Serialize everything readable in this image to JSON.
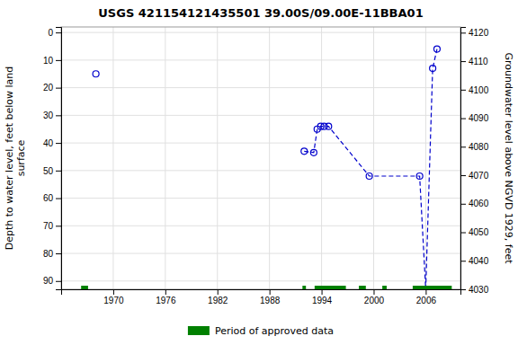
{
  "chart_data": {
    "type": "line",
    "title": "USGS 421154121435501 39.00S/09.00E-11BBA01",
    "y_label": "Depth to water level, feet below land\nsurface",
    "y2_label": "Groundwater level above NGVD 1929, feet",
    "xlim": [
      1964,
      2010
    ],
    "xticks": [
      1970,
      1976,
      1982,
      1988,
      1994,
      2000,
      2006
    ],
    "ylim": [
      93,
      -2
    ],
    "yticks": [
      0,
      10,
      20,
      30,
      40,
      50,
      60,
      70,
      80,
      90
    ],
    "y2lim": [
      4030,
      4122
    ],
    "y2ticks": [
      4030,
      4040,
      4050,
      4060,
      4070,
      4080,
      4090,
      4100,
      4110,
      4120
    ],
    "grid": true,
    "legend": "bottom",
    "series": [
      {
        "type": "line",
        "color": "#0000cc",
        "line_style": "dashed",
        "marker": "circle",
        "x": [
          1992.0,
          1993.1,
          1993.5,
          1993.9,
          1994.3,
          1994.8,
          1999.5,
          2005.3,
          2006.0,
          2006.8,
          2007.3
        ],
        "values": [
          43.0,
          43.5,
          35.0,
          34.0,
          34.0,
          34.0,
          52.0,
          52.0,
          93.0,
          13.0,
          6.0
        ]
      },
      {
        "type": "scatter",
        "color": "#0000cc",
        "marker": "circle",
        "x": [
          1968.0
        ],
        "values": [
          15.0
        ]
      },
      {
        "type": "span",
        "name": "Period of approved data",
        "color": "#008000",
        "y": 93.0,
        "periods": [
          [
            1966.3,
            1967.1
          ],
          [
            1991.8,
            1992.2
          ],
          [
            1993.2,
            1996.8
          ],
          [
            1998.3,
            1999.1
          ],
          [
            2001.0,
            2001.5
          ],
          [
            2004.5,
            2009.0
          ]
        ]
      }
    ]
  }
}
